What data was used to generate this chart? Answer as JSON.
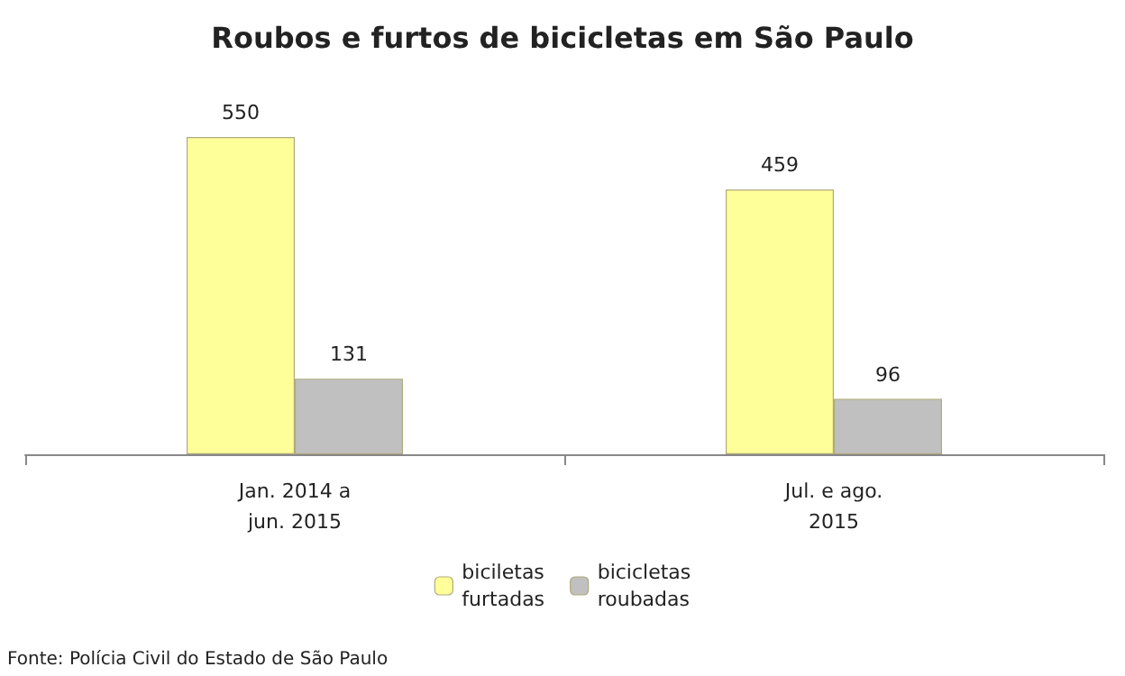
{
  "chart_data": {
    "type": "bar",
    "title": "Roubos e furtos de bicicletas em São Paulo",
    "categories": [
      "Jan. 2014 a\njun. 2015",
      "Jul. e ago.\n2015"
    ],
    "series": [
      {
        "name": "biciletas\nfurtadas",
        "color": "#ffff99",
        "values": [
          550,
          459
        ]
      },
      {
        "name": "bicicletas\nroubadas",
        "color": "#c0c0c0",
        "values": [
          131,
          96
        ]
      }
    ],
    "data_labels": true,
    "legend": "bottom",
    "annotations": [
      "Fonte: Polícia Civil do Estado de São Paulo"
    ]
  }
}
